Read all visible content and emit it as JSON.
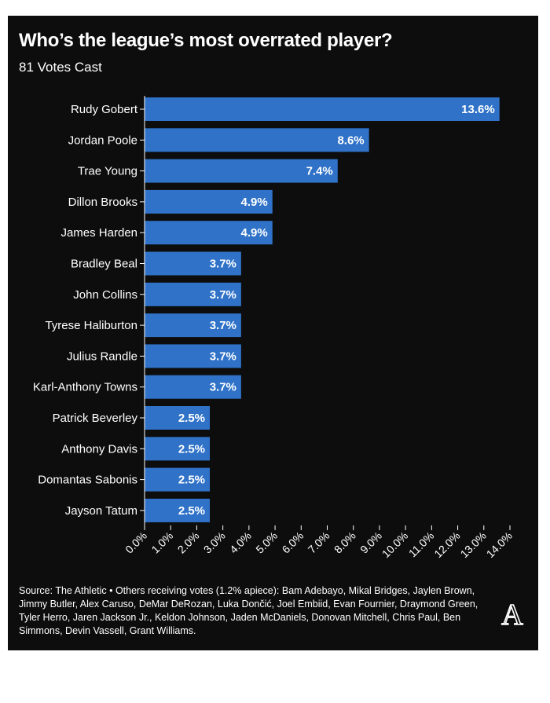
{
  "colors": {
    "background": "#0d0d0d",
    "bar": "#2f72c8",
    "text": "#ffffff"
  },
  "logo": {
    "icon": "athletic-a-logo",
    "letter": "A"
  },
  "footer": {
    "text": "Source: The Athletic • Others receiving votes (1.2% apiece): Bam Adebayo, Mikal Bridges, Jaylen Brown, Jimmy Butler, Alex Caruso, DeMar DeRozan, Luka Dončić, Joel Embiid, Evan Fournier, Draymond Green, Tyler Herro, Jaren Jackson Jr., Keldon Johnson, Jaden McDaniels, Donovan Mitchell, Chris Paul, Ben Simmons, Devin Vassell, Grant Williams."
  },
  "chart_data": {
    "type": "bar",
    "orientation": "horizontal",
    "title": "Who’s the league’s most overrated player?",
    "subtitle": "81 Votes Cast",
    "categories": [
      "Rudy Gobert",
      "Jordan Poole",
      "Trae Young",
      "Dillon Brooks",
      "James Harden",
      "Bradley Beal",
      "John Collins",
      "Tyrese Haliburton",
      "Julius Randle",
      "Karl-Anthony Towns",
      "Patrick Beverley",
      "Anthony Davis",
      "Domantas Sabonis",
      "Jayson Tatum"
    ],
    "values": [
      13.6,
      8.6,
      7.4,
      4.9,
      4.9,
      3.7,
      3.7,
      3.7,
      3.7,
      3.7,
      2.5,
      2.5,
      2.5,
      2.5
    ],
    "value_labels": [
      "13.6%",
      "8.6%",
      "7.4%",
      "4.9%",
      "4.9%",
      "3.7%",
      "3.7%",
      "3.7%",
      "3.7%",
      "3.7%",
      "2.5%",
      "2.5%",
      "2.5%",
      "2.5%"
    ],
    "xlim": [
      0,
      14
    ],
    "xticks": [
      0,
      1,
      2,
      3,
      4,
      5,
      6,
      7,
      8,
      9,
      10,
      11,
      12,
      13,
      14
    ],
    "xtick_labels": [
      "0.0%",
      "1.0%",
      "2.0%",
      "3.0%",
      "4.0%",
      "5.0%",
      "6.0%",
      "7.0%",
      "8.0%",
      "9.0%",
      "10.0%",
      "11.0%",
      "12.0%",
      "13.0%",
      "14.0%"
    ],
    "xlabel": "",
    "ylabel": "",
    "grid": false,
    "legend": "none"
  }
}
